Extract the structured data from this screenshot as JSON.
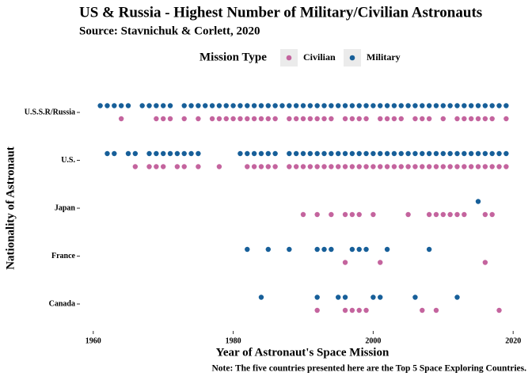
{
  "chart_data": {
    "type": "dot",
    "title": "US & Russia - Highest Number of Military/Civilian Astronauts",
    "subtitle": "Source: Stavnichuk & Corlett, 2020",
    "x_label": "Year of Astronaut's Space Mission",
    "y_label": "Nationality of Astronaut",
    "note": "Note: The five countries presented here are the Top 5 Space Exploring Countries.",
    "legend_title": "Mission Type",
    "legend_position": "top",
    "grid": false,
    "categories": [
      "U.S.S.R/Russia",
      "U.S.",
      "Japan",
      "France",
      "Canada"
    ],
    "xlim": [
      1958.1,
      2021.9
    ],
    "xticks": [
      1960,
      1980,
      2000,
      2020
    ],
    "series": [
      {
        "name": "Civilian",
        "color": "#c4649e",
        "values": [
          [
            1964,
            1969,
            1970,
            1971,
            1973,
            1975,
            1977,
            1978,
            1979,
            1980,
            1981,
            1982,
            1983,
            1984,
            1985,
            1986,
            1988,
            1989,
            1990,
            1991,
            1992,
            1993,
            1994,
            1996,
            1997,
            1998,
            1999,
            2001,
            2002,
            2003,
            2004,
            2006,
            2007,
            2008,
            2010,
            2012,
            2013,
            2014,
            2015,
            2016,
            2017,
            2019
          ],
          [
            1966,
            1968,
            1969,
            1970,
            1972,
            1973,
            1975,
            1978,
            1982,
            1983,
            1984,
            1985,
            1986,
            1988,
            1989,
            1990,
            1991,
            1992,
            1993,
            1994,
            1995,
            1996,
            1997,
            1998,
            1999,
            2000,
            2001,
            2002,
            2003,
            2004,
            2005,
            2006,
            2007,
            2008,
            2009,
            2010,
            2011,
            2012,
            2013,
            2014,
            2015,
            2016,
            2017,
            2018,
            2019
          ],
          [
            1990,
            1992,
            1994,
            1996,
            1997,
            1998,
            2000,
            2005,
            2008,
            2009,
            2010,
            2011,
            2012,
            2013,
            2016,
            2017
          ],
          [
            1996,
            2001,
            2016
          ],
          [
            1992,
            1996,
            1997,
            1998,
            1999,
            2007,
            2009,
            2018
          ]
        ]
      },
      {
        "name": "Military",
        "color": "#175f99",
        "values": [
          [
            1961,
            1962,
            1963,
            1964,
            1965,
            1967,
            1968,
            1969,
            1970,
            1971,
            1973,
            1974,
            1975,
            1976,
            1977,
            1978,
            1979,
            1980,
            1981,
            1982,
            1983,
            1984,
            1985,
            1986,
            1987,
            1988,
            1989,
            1990,
            1991,
            1992,
            1993,
            1994,
            1995,
            1996,
            1997,
            1998,
            1999,
            2000,
            2001,
            2002,
            2003,
            2004,
            2005,
            2006,
            2007,
            2008,
            2009,
            2010,
            2011,
            2012,
            2013,
            2014,
            2015,
            2016,
            2017,
            2018,
            2019
          ],
          [
            1962,
            1963,
            1965,
            1966,
            1968,
            1969,
            1970,
            1971,
            1972,
            1973,
            1974,
            1975,
            1981,
            1982,
            1983,
            1984,
            1985,
            1986,
            1988,
            1989,
            1990,
            1991,
            1992,
            1993,
            1994,
            1995,
            1996,
            1997,
            1998,
            1999,
            2000,
            2001,
            2002,
            2003,
            2004,
            2005,
            2006,
            2007,
            2008,
            2009,
            2010,
            2011,
            2012,
            2013,
            2014,
            2015,
            2016,
            2017,
            2018,
            2019
          ],
          [
            2015
          ],
          [
            1982,
            1985,
            1988,
            1992,
            1993,
            1994,
            1997,
            1998,
            1999,
            2002,
            2008
          ],
          [
            1984,
            1992,
            1995,
            1996,
            2000,
            2001,
            2006,
            2012
          ]
        ]
      }
    ]
  }
}
